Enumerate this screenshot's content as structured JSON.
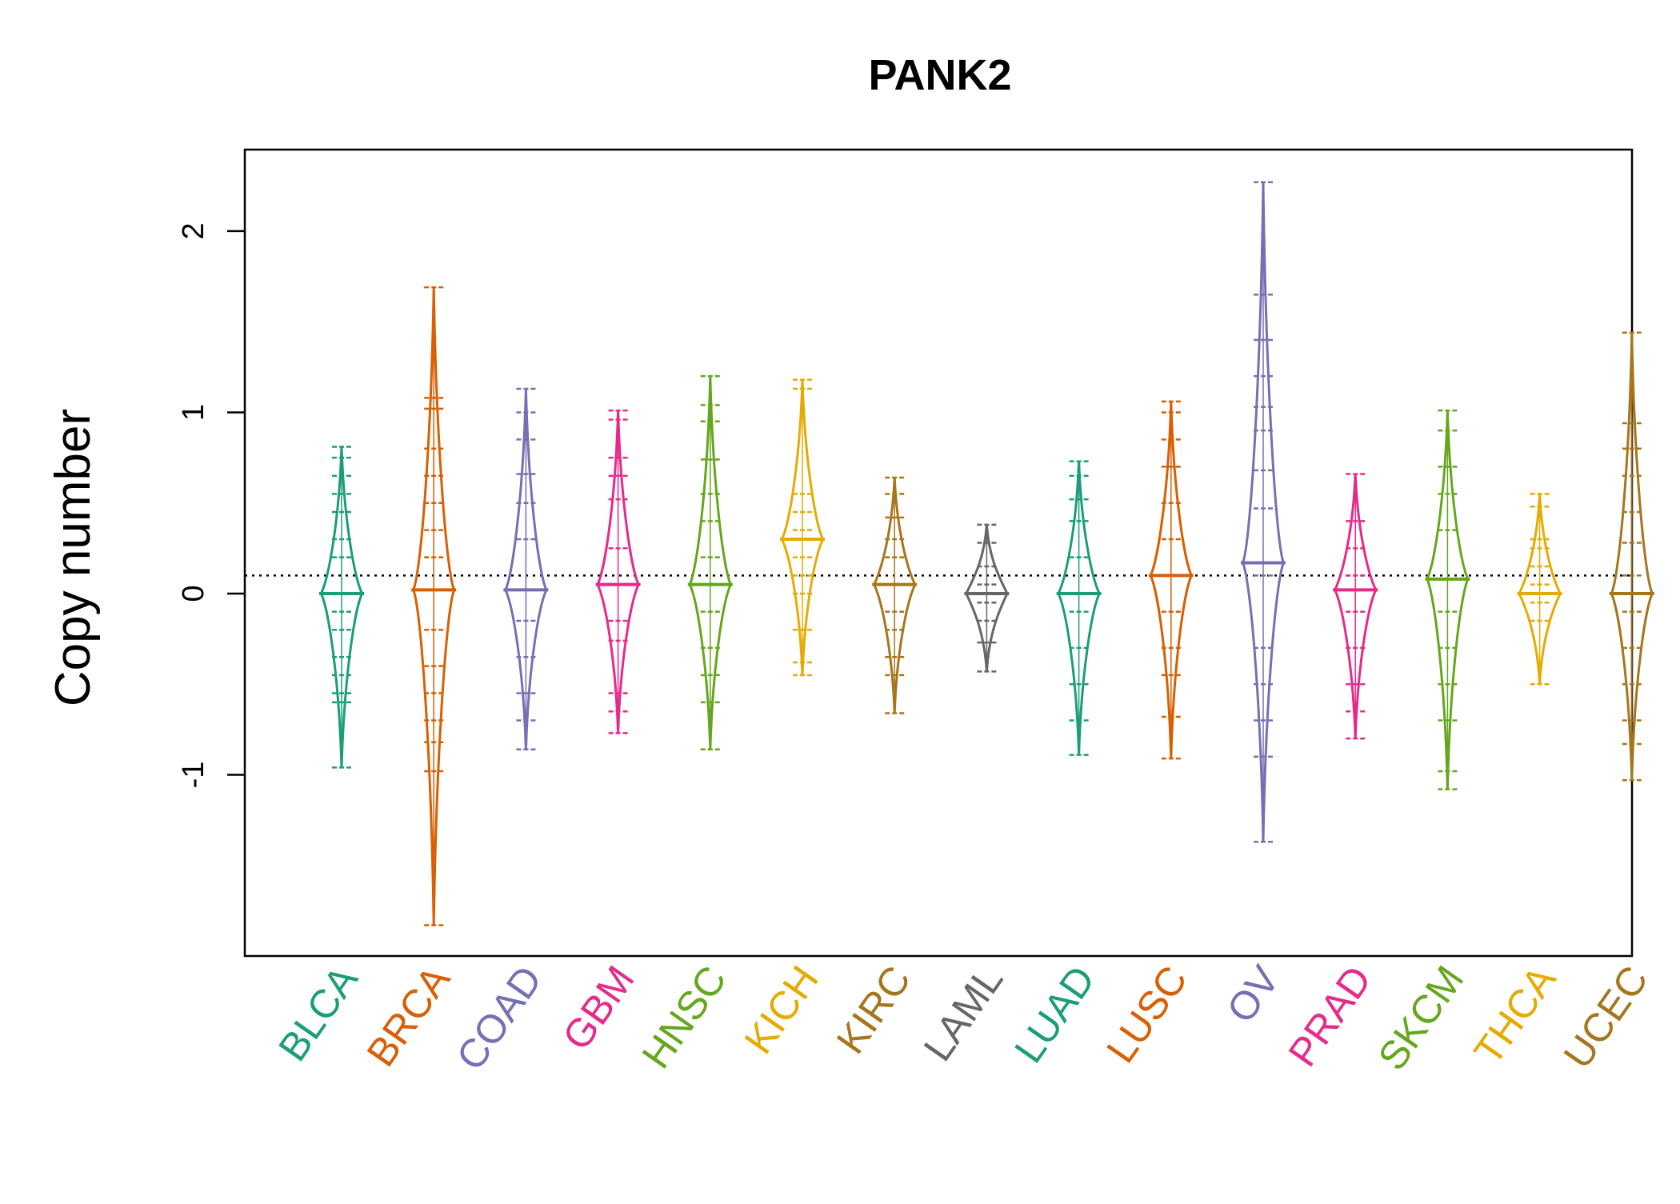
{
  "chart_data": {
    "type": "beanplot",
    "title": "PANK2",
    "xlabel": "",
    "ylabel": "Copy number",
    "ylim": [
      -2.0,
      2.45
    ],
    "yticks": [
      -1,
      0,
      1,
      2
    ],
    "reference_line": 0.1,
    "grid": false,
    "legend": "none",
    "categories": [
      "BLCA",
      "BRCA",
      "COAD",
      "GBM",
      "HNSC",
      "KICH",
      "KIRC",
      "LAML",
      "LUAD",
      "LUSC",
      "OV",
      "PRAD",
      "SKCM",
      "THCA",
      "UCEC"
    ],
    "colors": [
      "#1b9e77",
      "#d95f02",
      "#7570b3",
      "#e7298a",
      "#66a61e",
      "#e6ab02",
      "#a6761d",
      "#666666",
      "#1b9e77",
      "#d95f02",
      "#7570b3",
      "#e7298a",
      "#66a61e",
      "#e6ab02",
      "#a6761d"
    ],
    "series": [
      {
        "category": "BLCA",
        "median": 0.0,
        "min": -0.96,
        "max": 0.81,
        "points": [
          -0.96,
          -0.6,
          -0.55,
          -0.45,
          -0.35,
          -0.2,
          -0.1,
          0.2,
          0.3,
          0.45,
          0.55,
          0.65,
          0.75,
          0.81
        ]
      },
      {
        "category": "BRCA",
        "median": 0.02,
        "min": -1.83,
        "max": 1.69,
        "points": [
          -1.83,
          -0.98,
          -0.82,
          -0.7,
          -0.55,
          -0.4,
          -0.2,
          0.2,
          0.35,
          0.5,
          0.65,
          0.8,
          1.02,
          1.08,
          1.69
        ]
      },
      {
        "category": "COAD",
        "median": 0.02,
        "min": -0.86,
        "max": 1.13,
        "points": [
          -0.86,
          -0.7,
          -0.55,
          -0.35,
          -0.15,
          0.3,
          0.5,
          0.66,
          0.85,
          1.0,
          1.13
        ]
      },
      {
        "category": "GBM",
        "median": 0.05,
        "min": -0.77,
        "max": 1.01,
        "points": [
          -0.77,
          -0.65,
          -0.55,
          -0.26,
          -0.15,
          0.25,
          0.52,
          0.65,
          0.75,
          0.96,
          1.01
        ]
      },
      {
        "category": "HNSC",
        "median": 0.05,
        "min": -0.86,
        "max": 1.2,
        "points": [
          -0.86,
          -0.6,
          -0.45,
          -0.3,
          -0.1,
          0.2,
          0.4,
          0.55,
          0.74,
          0.95,
          1.04,
          1.2
        ]
      },
      {
        "category": "KICH",
        "median": 0.3,
        "min": -0.45,
        "max": 1.18,
        "points": [
          -0.45,
          -0.38,
          -0.2,
          0.0,
          0.1,
          0.2,
          0.3,
          0.35,
          0.45,
          0.55,
          1.13,
          1.18
        ]
      },
      {
        "category": "KIRC",
        "median": 0.05,
        "min": -0.66,
        "max": 0.64,
        "points": [
          -0.66,
          -0.45,
          -0.35,
          -0.2,
          -0.1,
          0.2,
          0.3,
          0.42,
          0.55,
          0.64
        ]
      },
      {
        "category": "LAML",
        "median": 0.0,
        "min": -0.43,
        "max": 0.38,
        "points": [
          -0.43,
          -0.27,
          -0.15,
          -0.05,
          0.05,
          0.15,
          0.28,
          0.38
        ]
      },
      {
        "category": "LUAD",
        "median": 0.0,
        "min": -0.89,
        "max": 0.73,
        "points": [
          -0.89,
          -0.7,
          -0.5,
          -0.3,
          -0.1,
          0.2,
          0.4,
          0.52,
          0.65,
          0.73
        ]
      },
      {
        "category": "LUSC",
        "median": 0.1,
        "min": -0.91,
        "max": 1.06,
        "points": [
          -0.91,
          -0.68,
          -0.45,
          -0.3,
          -0.1,
          0.3,
          0.5,
          0.7,
          0.85,
          1.0,
          1.06
        ]
      },
      {
        "category": "OV",
        "median": 0.17,
        "min": -1.37,
        "max": 2.27,
        "points": [
          -1.37,
          -0.9,
          -0.7,
          -0.5,
          -0.3,
          0.1,
          0.47,
          0.68,
          0.9,
          1.03,
          1.2,
          1.4,
          1.65,
          2.27
        ]
      },
      {
        "category": "PRAD",
        "median": 0.02,
        "min": -0.8,
        "max": 0.66,
        "points": [
          -0.8,
          -0.65,
          -0.5,
          -0.3,
          -0.1,
          0.1,
          0.25,
          0.4,
          0.66
        ]
      },
      {
        "category": "SKCM",
        "median": 0.08,
        "min": -1.08,
        "max": 1.01,
        "points": [
          -1.08,
          -0.98,
          -0.7,
          -0.5,
          -0.3,
          -0.1,
          0.35,
          0.55,
          0.7,
          0.9,
          1.01
        ]
      },
      {
        "category": "THCA",
        "median": 0.0,
        "min": -0.5,
        "max": 0.55,
        "points": [
          -0.5,
          -0.15,
          -0.05,
          0.05,
          0.15,
          0.25,
          0.3,
          0.48,
          0.55
        ]
      },
      {
        "category": "UCEC",
        "median": 0.0,
        "min": -1.03,
        "max": 1.44,
        "points": [
          -1.03,
          -0.83,
          -0.7,
          -0.5,
          -0.3,
          -0.1,
          0.1,
          0.28,
          0.45,
          0.65,
          0.8,
          0.94,
          1.44
        ]
      }
    ]
  }
}
